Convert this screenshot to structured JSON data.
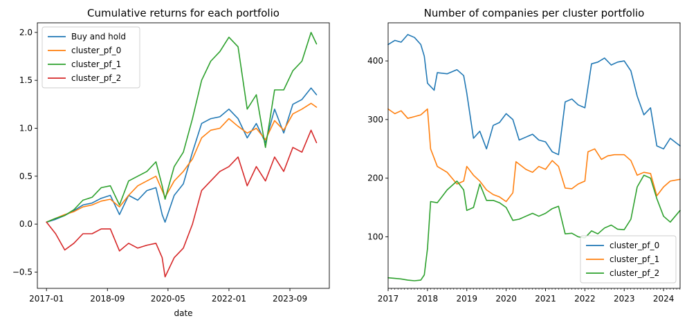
{
  "chart_data": [
    {
      "type": "line",
      "title": "Cumulative returns for each portfolio",
      "xlabel": "date",
      "ylabel": "",
      "x_tick_labels": [
        "2017-01",
        "2018-09",
        "2020-05",
        "2022-01",
        "2023-09"
      ],
      "y_ticks": [
        -0.5,
        0.0,
        0.5,
        1.0,
        1.5,
        2.0
      ],
      "y_tick_labels": [
        "−0.5",
        "0.0",
        "0.5",
        "1.0",
        "1.5",
        "2.0"
      ],
      "xlim": [
        2016.75,
        2024.75
      ],
      "ylim": [
        -0.67,
        2.1
      ],
      "legend_position": "upper-left",
      "grid": false,
      "series": [
        {
          "name": "Buy and hold",
          "color": "#1f77b4",
          "x": [
            2017.0,
            2017.25,
            2017.5,
            2017.75,
            2018.0,
            2018.25,
            2018.5,
            2018.75,
            2019.0,
            2019.25,
            2019.5,
            2019.75,
            2020.0,
            2020.17,
            2020.25,
            2020.5,
            2020.75,
            2021.0,
            2021.25,
            2021.5,
            2021.75,
            2022.0,
            2022.25,
            2022.5,
            2022.75,
            2023.0,
            2023.25,
            2023.5,
            2023.75,
            2024.0,
            2024.25,
            2024.4
          ],
          "y": [
            0.02,
            0.05,
            0.09,
            0.14,
            0.2,
            0.22,
            0.27,
            0.3,
            0.1,
            0.3,
            0.25,
            0.35,
            0.38,
            0.1,
            0.02,
            0.3,
            0.42,
            0.75,
            1.05,
            1.1,
            1.12,
            1.2,
            1.1,
            0.9,
            1.05,
            0.85,
            1.2,
            0.95,
            1.25,
            1.3,
            1.42,
            1.35
          ]
        },
        {
          "name": "cluster_pf_0",
          "color": "#ff7f0e",
          "x": [
            2017.0,
            2017.25,
            2017.5,
            2017.75,
            2018.0,
            2018.25,
            2018.5,
            2018.75,
            2019.0,
            2019.25,
            2019.5,
            2019.75,
            2020.0,
            2020.17,
            2020.25,
            2020.5,
            2020.75,
            2021.0,
            2021.25,
            2021.5,
            2021.75,
            2022.0,
            2022.25,
            2022.5,
            2022.75,
            2023.0,
            2023.25,
            2023.5,
            2023.75,
            2024.0,
            2024.25,
            2024.4
          ],
          "y": [
            0.02,
            0.06,
            0.1,
            0.13,
            0.18,
            0.2,
            0.24,
            0.26,
            0.18,
            0.3,
            0.4,
            0.45,
            0.5,
            0.35,
            0.28,
            0.45,
            0.55,
            0.68,
            0.9,
            0.98,
            1.0,
            1.1,
            1.02,
            0.95,
            1.0,
            0.88,
            1.08,
            0.98,
            1.15,
            1.2,
            1.26,
            1.22
          ]
        },
        {
          "name": "cluster_pf_1",
          "color": "#2ca02c",
          "x": [
            2017.0,
            2017.25,
            2017.5,
            2017.75,
            2018.0,
            2018.25,
            2018.5,
            2018.75,
            2019.0,
            2019.25,
            2019.5,
            2019.75,
            2020.0,
            2020.17,
            2020.25,
            2020.5,
            2020.75,
            2021.0,
            2021.25,
            2021.5,
            2021.75,
            2022.0,
            2022.25,
            2022.5,
            2022.75,
            2023.0,
            2023.25,
            2023.5,
            2023.75,
            2024.0,
            2024.25,
            2024.4
          ],
          "y": [
            0.02,
            0.06,
            0.09,
            0.15,
            0.25,
            0.28,
            0.38,
            0.4,
            0.2,
            0.45,
            0.5,
            0.55,
            0.65,
            0.4,
            0.26,
            0.6,
            0.75,
            1.1,
            1.5,
            1.7,
            1.8,
            1.95,
            1.85,
            1.2,
            1.35,
            0.8,
            1.4,
            1.4,
            1.6,
            1.7,
            2.0,
            1.88
          ]
        },
        {
          "name": "cluster_pf_2",
          "color": "#d62728",
          "x": [
            2017.0,
            2017.25,
            2017.5,
            2017.75,
            2018.0,
            2018.25,
            2018.5,
            2018.75,
            2019.0,
            2019.25,
            2019.5,
            2019.75,
            2020.0,
            2020.17,
            2020.25,
            2020.5,
            2020.75,
            2021.0,
            2021.25,
            2021.5,
            2021.75,
            2022.0,
            2022.25,
            2022.5,
            2022.75,
            2023.0,
            2023.25,
            2023.5,
            2023.75,
            2024.0,
            2024.25,
            2024.4
          ],
          "y": [
            0.02,
            -0.1,
            -0.27,
            -0.2,
            -0.1,
            -0.1,
            -0.05,
            -0.05,
            -0.28,
            -0.2,
            -0.25,
            -0.22,
            -0.2,
            -0.35,
            -0.55,
            -0.35,
            -0.25,
            0.0,
            0.35,
            0.45,
            0.55,
            0.6,
            0.7,
            0.4,
            0.6,
            0.45,
            0.7,
            0.55,
            0.8,
            0.75,
            0.98,
            0.85
          ]
        }
      ]
    },
    {
      "type": "line",
      "title": "Number of companies per cluster portfolio",
      "xlabel": "",
      "ylabel": "",
      "x_ticks": [
        2017,
        2018,
        2019,
        2020,
        2021,
        2022,
        2023,
        2024
      ],
      "x_tick_labels": [
        "2017",
        "2018",
        "2019",
        "2020",
        "2021",
        "2022",
        "2023",
        "2024"
      ],
      "y_ticks": [
        100,
        200,
        300,
        400
      ],
      "y_tick_labels": [
        "100",
        "200",
        "300",
        "400"
      ],
      "xlim": [
        2017.0,
        2024.42
      ],
      "ylim": [
        12,
        465
      ],
      "legend_position": "lower-right",
      "grid": false,
      "series": [
        {
          "name": "cluster_pf_0",
          "color": "#1f77b4",
          "x": [
            2017.0,
            2017.17,
            2017.33,
            2017.5,
            2017.67,
            2017.83,
            2017.92,
            2018.0,
            2018.17,
            2018.25,
            2018.5,
            2018.75,
            2018.92,
            2019.0,
            2019.17,
            2019.33,
            2019.5,
            2019.67,
            2019.83,
            2020.0,
            2020.17,
            2020.33,
            2020.5,
            2020.67,
            2020.83,
            2021.0,
            2021.17,
            2021.33,
            2021.5,
            2021.67,
            2021.83,
            2022.0,
            2022.17,
            2022.33,
            2022.5,
            2022.67,
            2022.83,
            2023.0,
            2023.17,
            2023.33,
            2023.5,
            2023.67,
            2023.83,
            2024.0,
            2024.17,
            2024.42
          ],
          "y": [
            428,
            435,
            432,
            445,
            440,
            428,
            408,
            362,
            350,
            380,
            378,
            385,
            375,
            345,
            268,
            280,
            250,
            290,
            295,
            310,
            300,
            265,
            270,
            275,
            265,
            262,
            245,
            240,
            330,
            335,
            325,
            320,
            395,
            398,
            405,
            393,
            398,
            400,
            383,
            340,
            308,
            320,
            255,
            250,
            268,
            255
          ]
        },
        {
          "name": "cluster_pf_1",
          "color": "#ff7f0e",
          "x": [
            2017.0,
            2017.17,
            2017.33,
            2017.5,
            2017.67,
            2017.83,
            2018.0,
            2018.08,
            2018.25,
            2018.5,
            2018.75,
            2018.92,
            2019.0,
            2019.17,
            2019.33,
            2019.5,
            2019.67,
            2019.83,
            2020.0,
            2020.17,
            2020.25,
            2020.5,
            2020.67,
            2020.83,
            2021.0,
            2021.17,
            2021.33,
            2021.5,
            2021.67,
            2021.83,
            2022.0,
            2022.08,
            2022.25,
            2022.42,
            2022.58,
            2022.75,
            2023.0,
            2023.17,
            2023.33,
            2023.5,
            2023.67,
            2023.83,
            2024.0,
            2024.17,
            2024.42
          ],
          "y": [
            318,
            310,
            315,
            302,
            305,
            308,
            318,
            250,
            220,
            210,
            190,
            195,
            220,
            205,
            195,
            180,
            172,
            168,
            160,
            175,
            228,
            215,
            210,
            220,
            215,
            230,
            220,
            183,
            182,
            190,
            195,
            245,
            250,
            232,
            238,
            240,
            240,
            230,
            205,
            210,
            208,
            170,
            185,
            195,
            198
          ]
        },
        {
          "name": "cluster_pf_2",
          "color": "#2ca02c",
          "x": [
            2017.0,
            2017.17,
            2017.33,
            2017.5,
            2017.67,
            2017.83,
            2017.92,
            2018.0,
            2018.08,
            2018.25,
            2018.5,
            2018.75,
            2018.92,
            2019.0,
            2019.17,
            2019.33,
            2019.5,
            2019.67,
            2019.83,
            2020.0,
            2020.17,
            2020.33,
            2020.5,
            2020.67,
            2020.83,
            2021.0,
            2021.17,
            2021.33,
            2021.5,
            2021.67,
            2021.83,
            2022.0,
            2022.17,
            2022.33,
            2022.5,
            2022.67,
            2022.83,
            2023.0,
            2023.17,
            2023.33,
            2023.5,
            2023.67,
            2023.83,
            2024.0,
            2024.17,
            2024.42
          ],
          "y": [
            30,
            29,
            28,
            26,
            25,
            26,
            35,
            80,
            160,
            158,
            180,
            195,
            180,
            145,
            150,
            190,
            162,
            162,
            158,
            150,
            128,
            130,
            135,
            140,
            135,
            140,
            148,
            152,
            105,
            106,
            100,
            98,
            110,
            105,
            115,
            120,
            113,
            112,
            130,
            185,
            205,
            200,
            165,
            135,
            125,
            145
          ]
        }
      ]
    }
  ]
}
